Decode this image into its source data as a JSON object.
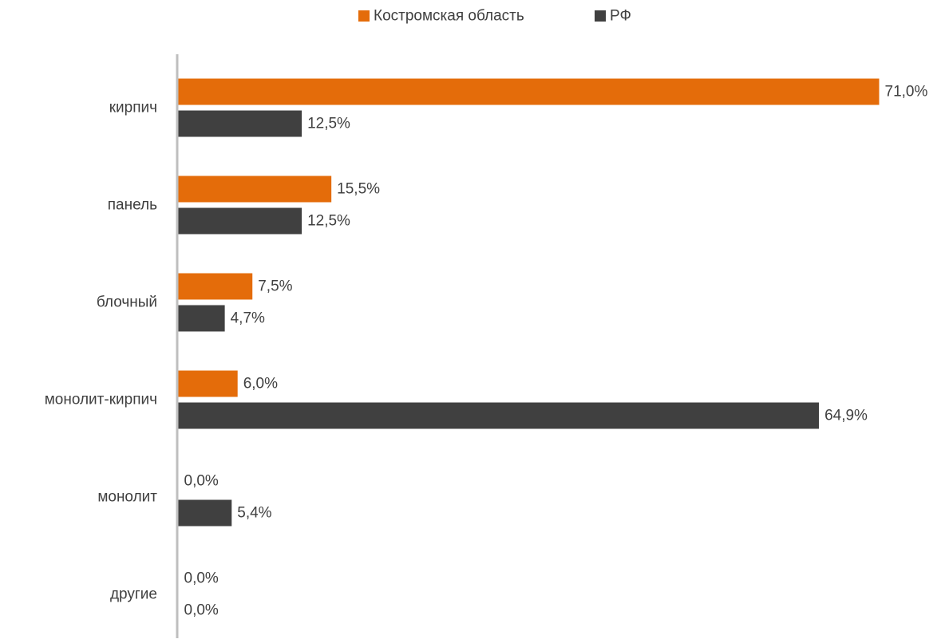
{
  "chart_data": {
    "type": "bar",
    "orientation": "horizontal",
    "categories": [
      "кирпич",
      "панель",
      "блочный",
      "монолит-кирпич",
      "монолит",
      "другие"
    ],
    "series": [
      {
        "name": "Костромская область",
        "color": "#E46C0A",
        "values": [
          71.0,
          15.5,
          7.5,
          6.0,
          0.0,
          0.0
        ],
        "labels": [
          "71,0%",
          "15,5%",
          "7,5%",
          "6,0%",
          "0,0%",
          "0,0%"
        ]
      },
      {
        "name": "РФ",
        "color": "#404040",
        "values": [
          12.5,
          12.5,
          4.7,
          64.9,
          5.4,
          0.0
        ],
        "labels": [
          "12,5%",
          "12,5%",
          "4,7%",
          "64,9%",
          "5,4%",
          "0,0%"
        ]
      }
    ],
    "legend": {
      "position": "top-center"
    },
    "xlim": [
      0,
      71
    ],
    "grid": false,
    "axis_color": "#BFBFBF",
    "text_color": "#404040"
  }
}
